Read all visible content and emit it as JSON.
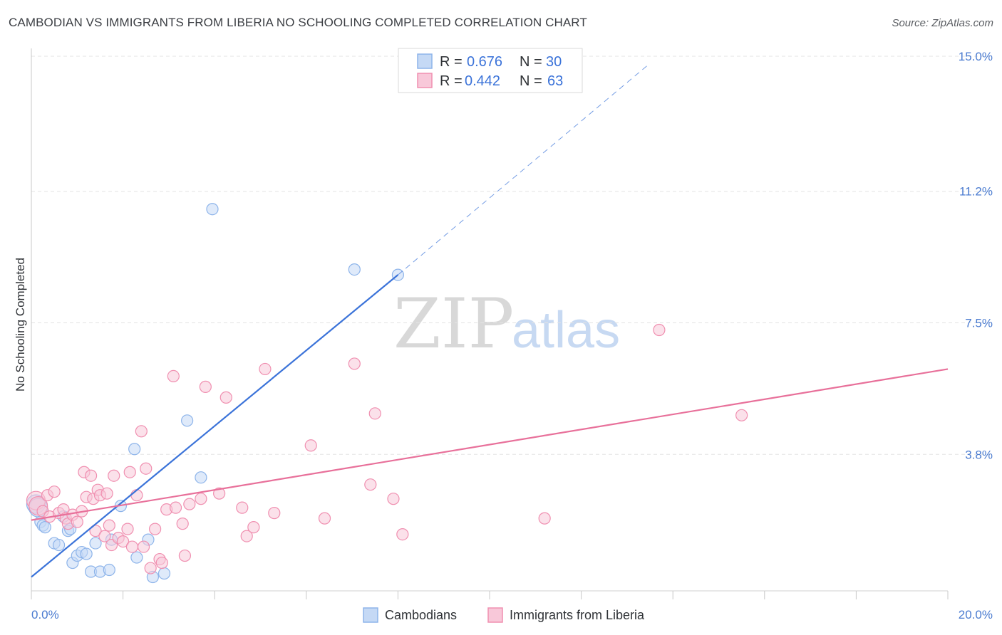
{
  "title": "CAMBODIAN VS IMMIGRANTS FROM LIBERIA NO SCHOOLING COMPLETED CORRELATION CHART",
  "source": "Source: ZipAtlas.com",
  "watermark": {
    "zip": "ZIP",
    "atlas": "atlas"
  },
  "legend": {
    "r_label": "R =",
    "n_label": "N =",
    "rows": [
      {
        "r": "0.676",
        "n": "30",
        "color": "#8db4ea",
        "fill": "#c5d9f5"
      },
      {
        "r": "0.442",
        "n": "63",
        "color": "#f08fb0",
        "fill": "#f8c8d9"
      }
    ]
  },
  "bottom_legend": [
    {
      "label": "Cambodians",
      "fill": "#c5d9f5",
      "stroke": "#8db4ea"
    },
    {
      "label": "Immigrants from Liberia",
      "fill": "#f8c8d9",
      "stroke": "#f08fb0"
    }
  ],
  "chart_data": {
    "type": "scatter",
    "title": "CAMBODIAN VS IMMIGRANTS FROM LIBERIA NO SCHOOLING COMPLETED CORRELATION CHART",
    "xlabel": "",
    "ylabel": "No Schooling Completed",
    "xlim": [
      0,
      20
    ],
    "ylim": [
      0,
      15
    ],
    "x_tick_labels": [
      {
        "value": 0,
        "label": "0.0%"
      },
      {
        "value": 20,
        "label": "20.0%"
      }
    ],
    "y_tick_labels": [
      {
        "value": 3.8,
        "label": "3.8%"
      },
      {
        "value": 7.5,
        "label": "7.5%"
      },
      {
        "value": 11.2,
        "label": "11.2%"
      },
      {
        "value": 15.0,
        "label": "15.0%"
      }
    ],
    "series": [
      {
        "name": "Cambodians",
        "color": "#3b73d9",
        "point_fill": "#c5d9f5",
        "point_stroke": "#8db4ea",
        "trend": {
          "x0": 0,
          "y0": 0.35,
          "x1": 8.0,
          "y1": 8.85,
          "dash_to_x": 13.5,
          "dash_to_y": 14.8
        },
        "points": [
          [
            0.1,
            2.4
          ],
          [
            0.15,
            2.3
          ],
          [
            0.2,
            1.9
          ],
          [
            0.25,
            1.8
          ],
          [
            0.3,
            1.75
          ],
          [
            0.5,
            1.3
          ],
          [
            0.6,
            1.25
          ],
          [
            0.7,
            2.05
          ],
          [
            0.8,
            1.65
          ],
          [
            0.85,
            1.7
          ],
          [
            0.9,
            0.75
          ],
          [
            1.0,
            0.95
          ],
          [
            1.1,
            1.05
          ],
          [
            1.2,
            1.0
          ],
          [
            1.3,
            0.5
          ],
          [
            1.4,
            1.3
          ],
          [
            1.5,
            0.5
          ],
          [
            1.7,
            0.55
          ],
          [
            1.75,
            1.4
          ],
          [
            1.95,
            2.35
          ],
          [
            2.25,
            3.95
          ],
          [
            2.3,
            0.9
          ],
          [
            2.55,
            1.4
          ],
          [
            2.65,
            0.35
          ],
          [
            2.9,
            0.45
          ],
          [
            3.4,
            4.75
          ],
          [
            3.7,
            3.15
          ],
          [
            3.95,
            10.7
          ],
          [
            7.05,
            9.0
          ],
          [
            8.0,
            8.85
          ]
        ]
      },
      {
        "name": "Immigrants from Liberia",
        "color": "#e8709a",
        "point_fill": "#f8c8d9",
        "point_stroke": "#f08fb0",
        "trend": {
          "x0": 0,
          "y0": 1.95,
          "x1": 20,
          "y1": 6.2
        },
        "points": [
          [
            0.1,
            2.5
          ],
          [
            0.15,
            2.35
          ],
          [
            0.25,
            2.2
          ],
          [
            0.35,
            2.65
          ],
          [
            0.4,
            2.05
          ],
          [
            0.5,
            2.75
          ],
          [
            0.6,
            2.15
          ],
          [
            0.7,
            2.25
          ],
          [
            0.75,
            2.0
          ],
          [
            0.8,
            1.85
          ],
          [
            0.9,
            2.1
          ],
          [
            1.0,
            1.9
          ],
          [
            1.1,
            2.2
          ],
          [
            1.15,
            3.3
          ],
          [
            1.2,
            2.6
          ],
          [
            1.3,
            3.2
          ],
          [
            1.35,
            2.55
          ],
          [
            1.4,
            1.65
          ],
          [
            1.45,
            2.8
          ],
          [
            1.5,
            2.65
          ],
          [
            1.6,
            1.5
          ],
          [
            1.65,
            2.7
          ],
          [
            1.7,
            1.8
          ],
          [
            1.75,
            1.25
          ],
          [
            1.8,
            3.2
          ],
          [
            1.9,
            1.45
          ],
          [
            2.0,
            1.35
          ],
          [
            2.1,
            1.7
          ],
          [
            2.15,
            3.3
          ],
          [
            2.2,
            1.2
          ],
          [
            2.3,
            2.65
          ],
          [
            2.4,
            4.45
          ],
          [
            2.45,
            1.2
          ],
          [
            2.5,
            3.4
          ],
          [
            2.6,
            0.6
          ],
          [
            2.7,
            1.7
          ],
          [
            2.8,
            0.85
          ],
          [
            2.85,
            0.75
          ],
          [
            2.95,
            2.25
          ],
          [
            3.1,
            6.0
          ],
          [
            3.15,
            2.3
          ],
          [
            3.3,
            1.85
          ],
          [
            3.35,
            0.95
          ],
          [
            3.45,
            2.4
          ],
          [
            3.7,
            2.55
          ],
          [
            3.8,
            5.7
          ],
          [
            4.1,
            2.7
          ],
          [
            4.25,
            5.4
          ],
          [
            4.6,
            2.3
          ],
          [
            4.7,
            1.5
          ],
          [
            4.85,
            1.75
          ],
          [
            5.1,
            6.2
          ],
          [
            5.3,
            2.15
          ],
          [
            6.1,
            4.05
          ],
          [
            6.4,
            2.0
          ],
          [
            7.05,
            6.35
          ],
          [
            7.4,
            2.95
          ],
          [
            7.5,
            4.95
          ],
          [
            7.9,
            2.55
          ],
          [
            8.1,
            1.55
          ],
          [
            11.2,
            2.0
          ],
          [
            13.7,
            7.3
          ],
          [
            15.5,
            4.9
          ]
        ]
      }
    ]
  }
}
